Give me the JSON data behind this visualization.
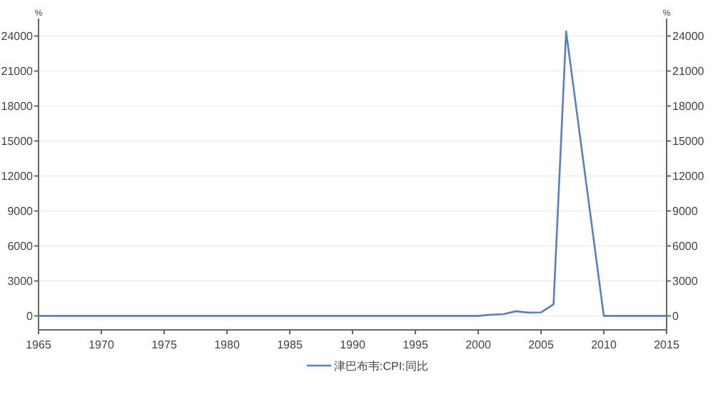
{
  "chart_data": {
    "type": "line",
    "ylabel": "%",
    "y2label": "%",
    "x": [
      1965,
      2000,
      2001,
      2002,
      2003,
      2004,
      2005,
      2006,
      2007,
      2010,
      2015
    ],
    "series": [
      {
        "name": "津巴布韦:CPI:同比",
        "color": "#5b7fbf",
        "values": [
          0,
          0,
          100,
          150,
          400,
          280,
          300,
          1000,
          24400,
          0,
          0
        ]
      }
    ],
    "xlim": [
      1965,
      2015
    ],
    "xticks": [
      1965,
      1970,
      1975,
      1980,
      1985,
      1990,
      1995,
      2000,
      2005,
      2010,
      2015
    ],
    "ylim": [
      -1200,
      25500
    ],
    "yticks": [
      0,
      3000,
      6000,
      9000,
      12000,
      15000,
      18000,
      21000,
      24000
    ],
    "y2lim": [
      -1200,
      25500
    ],
    "y2ticks": [
      0,
      3000,
      6000,
      9000,
      12000,
      15000,
      18000,
      21000,
      24000
    ],
    "grid": "y",
    "legend": "bottom"
  }
}
